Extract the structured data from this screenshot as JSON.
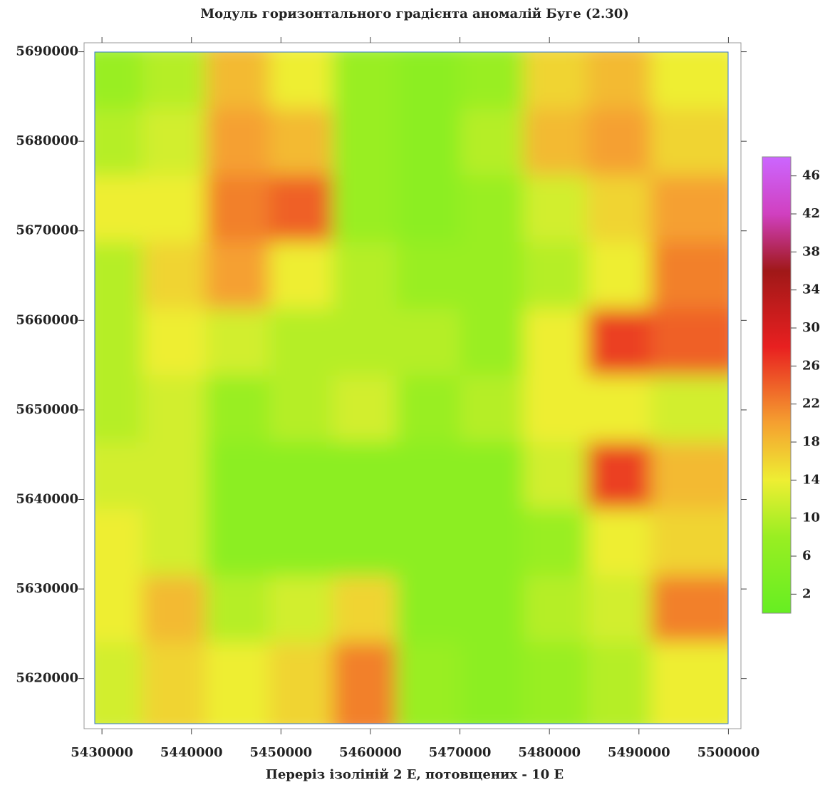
{
  "chart_data": {
    "type": "contour",
    "title": "Модуль горизонтального градієнта аномалій Буге (2.30)",
    "xlabel": "Переріз ізоліній 2 Е, потовщених - 10 Е",
    "xlim": [
      5428000,
      5501400
    ],
    "xticks": [
      5430000,
      5440000,
      5450000,
      5460000,
      5470000,
      5480000,
      5490000,
      5500000
    ],
    "ylim": [
      5614400,
      5691000
    ],
    "yticks": [
      5620000,
      5630000,
      5640000,
      5650000,
      5660000,
      5670000,
      5680000,
      5690000
    ],
    "x": [
      5432550,
      5439650,
      5446750,
      5453850,
      5460950,
      5468050,
      5475150,
      5482250,
      5489350,
      5496450
    ],
    "y": [
      5685775,
      5678325,
      5670875,
      5663425,
      5655975,
      5648525,
      5641075,
      5633625,
      5626175,
      5618725
    ],
    "z": [
      [
        8,
        10,
        18,
        14,
        8,
        6,
        8,
        16,
        18,
        14
      ],
      [
        10,
        12,
        20,
        18,
        8,
        6,
        10,
        18,
        20,
        16
      ],
      [
        14,
        14,
        22,
        24,
        8,
        6,
        8,
        12,
        16,
        20
      ],
      [
        10,
        16,
        20,
        14,
        10,
        8,
        8,
        10,
        14,
        22
      ],
      [
        10,
        14,
        12,
        10,
        10,
        10,
        8,
        14,
        26,
        24
      ],
      [
        10,
        12,
        8,
        10,
        12,
        8,
        10,
        14,
        14,
        12
      ],
      [
        12,
        12,
        6,
        6,
        6,
        6,
        6,
        12,
        26,
        18
      ],
      [
        14,
        12,
        6,
        6,
        6,
        6,
        6,
        8,
        14,
        16
      ],
      [
        14,
        18,
        10,
        12,
        16,
        6,
        6,
        10,
        12,
        22
      ],
      [
        12,
        16,
        14,
        16,
        22,
        8,
        6,
        8,
        10,
        14
      ]
    ],
    "zlim": [
      0,
      48
    ],
    "zticks": [
      2,
      6,
      10,
      14,
      18,
      22,
      26,
      30,
      34,
      38,
      42,
      46
    ],
    "colorscale": [
      [
        0,
        "#66ee22"
      ],
      [
        8,
        "#99ee22"
      ],
      [
        14,
        "#eeee33"
      ],
      [
        20,
        "#f5a030"
      ],
      [
        28,
        "#e82020"
      ],
      [
        36,
        "#a01818"
      ],
      [
        42,
        "#d040c0"
      ],
      [
        48,
        "#cc66ff"
      ]
    ]
  }
}
